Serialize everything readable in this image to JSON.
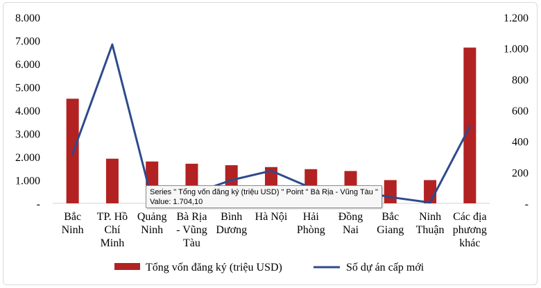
{
  "chart_data": {
    "type": "bar",
    "categories": [
      [
        "Bắc",
        "Ninh"
      ],
      [
        "TP. Hồ",
        "Chí",
        "Minh"
      ],
      [
        "Quảng",
        "Ninh"
      ],
      [
        "Bà Rịa",
        "- Vũng",
        "Tàu"
      ],
      [
        "Bình",
        "Dương"
      ],
      [
        "Hà Nội"
      ],
      [
        "Hải",
        "Phòng"
      ],
      [
        "Đồng",
        "Nai"
      ],
      [
        "Bắc",
        "Giang"
      ],
      [
        "Ninh",
        "Thuận"
      ],
      [
        "Các địa",
        "phương",
        "khác"
      ]
    ],
    "series": [
      {
        "name": "Tổng vốn đăng ký (triệu USD)",
        "type": "bar",
        "axis": "left",
        "color": "#b22222",
        "values": [
          4500,
          1920,
          1800,
          1704.1,
          1640,
          1560,
          1470,
          1390,
          1000,
          1000,
          6700
        ]
      },
      {
        "name": "Số dự án cấp mới",
        "type": "line",
        "axis": "right",
        "color": "#2e4a8c",
        "values": [
          320,
          1025,
          20,
          60,
          150,
          210,
          100,
          90,
          40,
          5,
          495
        ]
      }
    ],
    "left_axis": {
      "ylim": [
        0,
        8000
      ],
      "ticks": [
        0,
        1000,
        2000,
        3000,
        4000,
        5000,
        6000,
        7000,
        8000
      ],
      "tick_labels": [
        "-",
        "1.000",
        "2.000",
        "3.000",
        "4.000",
        "5.000",
        "6.000",
        "7.000",
        "8.000"
      ]
    },
    "right_axis": {
      "ylim": [
        0,
        1200
      ],
      "ticks": [
        0,
        200,
        400,
        600,
        800,
        1000,
        1200
      ],
      "tick_labels": [
        "-",
        "200",
        "400",
        "600",
        "800",
        "1.000",
        "1.200"
      ]
    },
    "grid": false,
    "legend": "bottom",
    "tooltip": {
      "line1": "Series \" Tổng vốn đăng ký (triệu USD) \" Point \" Bà Rịa - Vũng Tàu \"",
      "line2": "Value:  1.704,10"
    }
  }
}
